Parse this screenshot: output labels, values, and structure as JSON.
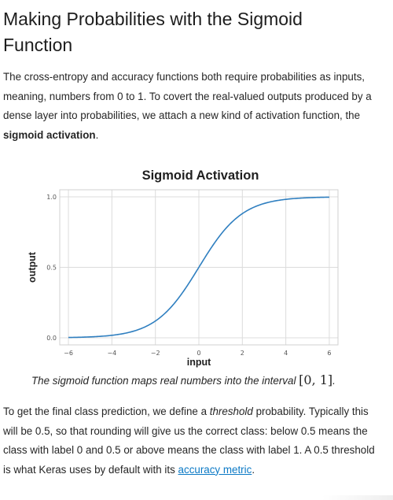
{
  "article": {
    "title": "Making Probabilities with the Sigmoid Function",
    "paragraph1": {
      "text_a": "The cross-entropy and accuracy functions both require probabilities as inputs, meaning, numbers from 0 to 1. To covert the real-valued outputs produced by a dense layer into probabilities, we attach a new kind of activation function, the ",
      "bold": "sigmoid activation",
      "text_b": "."
    },
    "caption": {
      "text": "The sigmoid function maps real numbers into the interval ",
      "interval": "[0, 1]",
      "end": "."
    },
    "paragraph2": {
      "text_a": "To get the final class prediction, we define a ",
      "italic": "threshold",
      "text_b": " probability. Typically this will be 0.5, so that rounding will give us the correct class: below 0.5 means the class with label 0 and 0.5 or above means the class with label 1. A 0.5 threshold is what Keras uses by default with its ",
      "link": "accuracy metric",
      "text_c": "."
    }
  },
  "chart_data": {
    "type": "line",
    "title": "Sigmoid Activation",
    "xlabel": "input",
    "ylabel": "output",
    "xlim": [
      -6.4,
      6.4
    ],
    "ylim": [
      -0.05,
      1.05
    ],
    "xticks": [
      -6,
      -4,
      -2,
      0,
      2,
      4,
      6
    ],
    "xticklabels": [
      "−6",
      "−4",
      "−2",
      "0",
      "2",
      "4",
      "6"
    ],
    "yticks": [
      0.0,
      0.5,
      1.0
    ],
    "yticklabels": [
      "0.0",
      "0.5",
      "1.0"
    ],
    "grid": true,
    "line_color": "#2f7fc0",
    "series": [
      {
        "function": "sigmoid",
        "x": [
          -6,
          -5,
          -4,
          -3,
          -2,
          -1,
          0,
          1,
          2,
          3,
          4,
          5,
          6
        ],
        "y": [
          0.0025,
          0.0067,
          0.018,
          0.047,
          0.119,
          0.269,
          0.5,
          0.731,
          0.881,
          0.953,
          0.982,
          0.9933,
          0.9975
        ]
      }
    ]
  }
}
